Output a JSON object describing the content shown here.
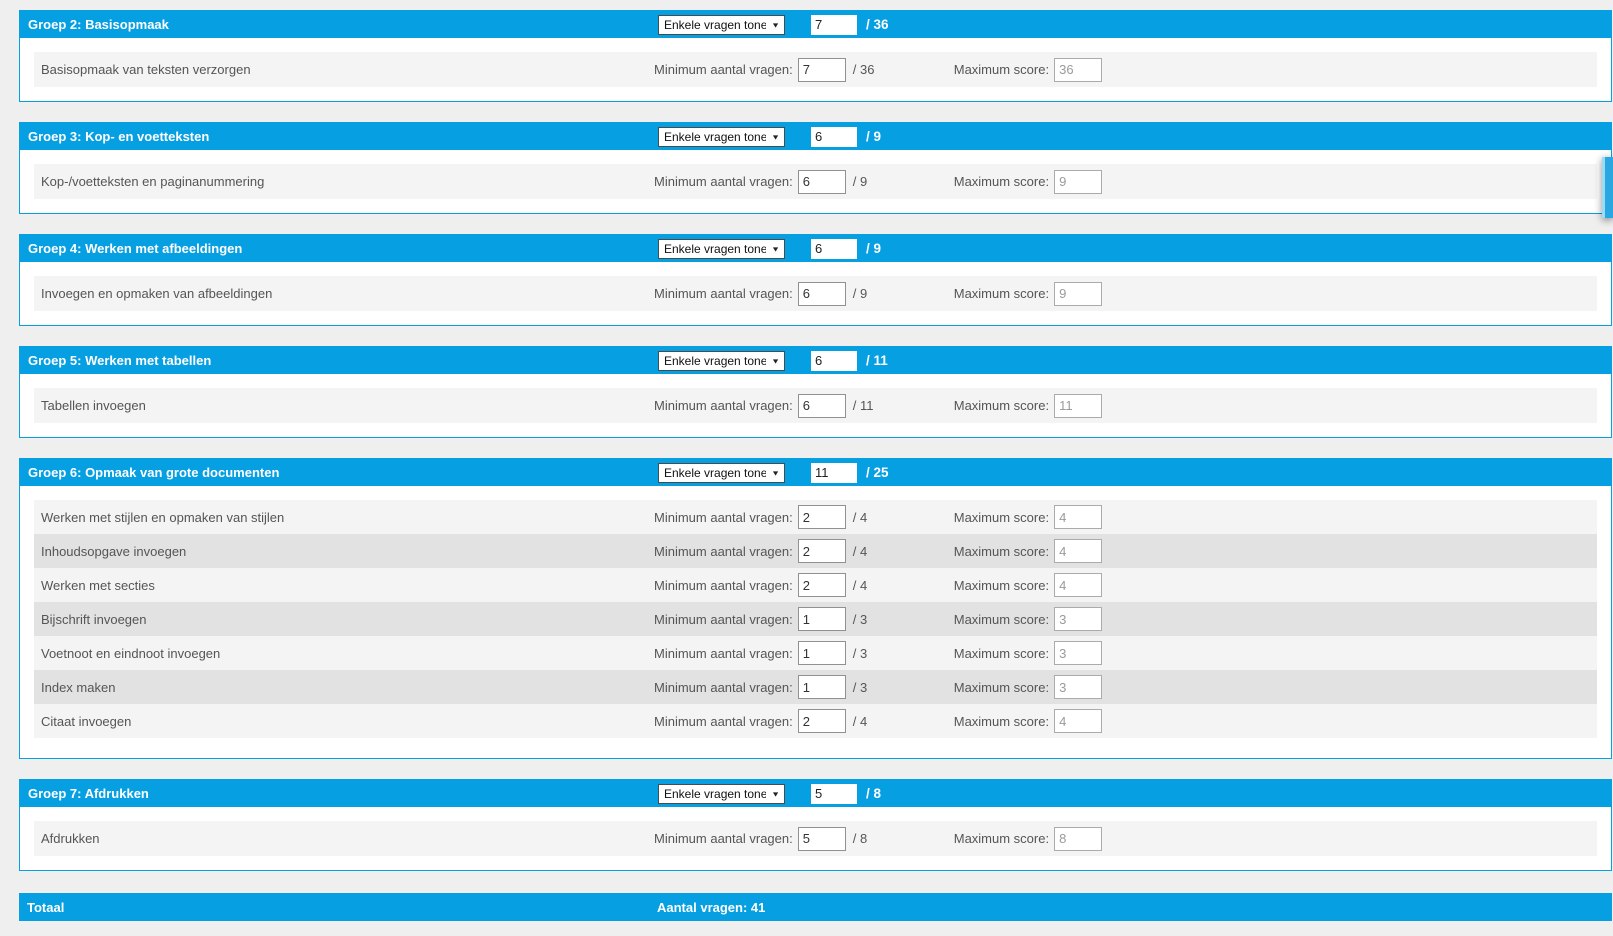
{
  "page": {
    "accent_color": "#069fe2",
    "background_color": "#efefef",
    "row_color": "#f4f4f4",
    "row_alt_color": "#e2e2e2"
  },
  "labels": {
    "dropdown_value": "Enkele vragen tonen",
    "min_label": "Minimum aantal vragen:",
    "max_label": "Maximum score:",
    "total_title": "Totaal",
    "total_questions": "Aantal vragen: 41"
  },
  "icons": {
    "dropdown_arrow": "▼"
  },
  "groups": [
    {
      "title": "Groep 2: Basisopmaak",
      "selected": "7",
      "total": "/ 36",
      "rows": [
        {
          "topic": "Basisopmaak van teksten verzorgen",
          "min": "7",
          "of": "/ 36",
          "max": "36"
        }
      ]
    },
    {
      "title": "Groep 3: Kop- en voetteksten",
      "selected": "6",
      "total": "/ 9",
      "rows": [
        {
          "topic": "Kop-/voetteksten en paginanummering",
          "min": "6",
          "of": "/ 9",
          "max": "9"
        }
      ]
    },
    {
      "title": "Groep 4: Werken met afbeeldingen",
      "selected": "6",
      "total": "/ 9",
      "rows": [
        {
          "topic": "Invoegen en opmaken van afbeeldingen",
          "min": "6",
          "of": "/ 9",
          "max": "9"
        }
      ]
    },
    {
      "title": "Groep 5: Werken met tabellen",
      "selected": "6",
      "total": "/ 11",
      "rows": [
        {
          "topic": "Tabellen invoegen",
          "min": "6",
          "of": "/ 11",
          "max": "11"
        }
      ]
    },
    {
      "title": "Groep 6: Opmaak van grote documenten",
      "selected": "11",
      "total": "/ 25",
      "rows": [
        {
          "topic": "Werken met stijlen en opmaken van stijlen",
          "min": "2",
          "of": "/ 4",
          "max": "4"
        },
        {
          "topic": "Inhoudsopgave invoegen",
          "min": "2",
          "of": "/ 4",
          "max": "4"
        },
        {
          "topic": "Werken met secties",
          "min": "2",
          "of": "/ 4",
          "max": "4"
        },
        {
          "topic": "Bijschrift invoegen",
          "min": "1",
          "of": "/ 3",
          "max": "3"
        },
        {
          "topic": "Voetnoot en eindnoot invoegen",
          "min": "1",
          "of": "/ 3",
          "max": "3"
        },
        {
          "topic": "Index maken",
          "min": "1",
          "of": "/ 3",
          "max": "3"
        },
        {
          "topic": "Citaat invoegen",
          "min": "2",
          "of": "/ 4",
          "max": "4"
        }
      ]
    },
    {
      "title": "Groep 7: Afdrukken",
      "selected": "5",
      "total": "/ 8",
      "rows": [
        {
          "topic": "Afdrukken",
          "min": "5",
          "of": "/ 8",
          "max": "8"
        }
      ]
    }
  ]
}
